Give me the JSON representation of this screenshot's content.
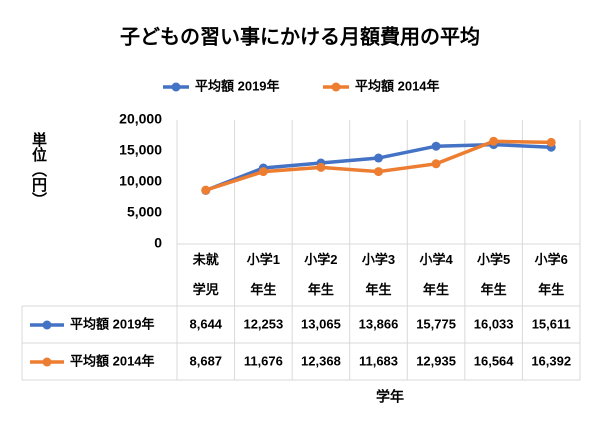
{
  "chart_data": {
    "type": "line",
    "title": "子どもの習い事にかける月額費用の平均",
    "y_label": "単位（円）",
    "x_label": "学年",
    "categories": [
      "未就\n学児",
      "小学1\n年生",
      "小学2\n年生",
      "小学3\n年生",
      "小学4\n年生",
      "小学5\n年生",
      "小学6\n年生"
    ],
    "series": [
      {
        "name": "平均額 2019年",
        "color": "#4472c4",
        "values": [
          8644,
          12253,
          13065,
          13866,
          15775,
          16033,
          15611
        ],
        "value_labels": [
          "8,644",
          "12,253",
          "13,065",
          "13,866",
          "15,775",
          "16,033",
          "15,611"
        ]
      },
      {
        "name": "平均額 2014年",
        "color": "#ed7d31",
        "values": [
          8687,
          11676,
          12368,
          11683,
          12935,
          16564,
          16392
        ],
        "value_labels": [
          "8,687",
          "11,676",
          "12,368",
          "11,683",
          "12,935",
          "16,564",
          "16,392"
        ]
      }
    ],
    "ylim": [
      0,
      20000
    ],
    "yticks": [
      {
        "value": 0,
        "label": "0"
      },
      {
        "value": 5000,
        "label": "5,000"
      },
      {
        "value": 10000,
        "label": "10,000"
      },
      {
        "value": 15000,
        "label": "15,000"
      },
      {
        "value": 20000,
        "label": "20,000"
      }
    ],
    "legend": "top",
    "data_table": true
  }
}
